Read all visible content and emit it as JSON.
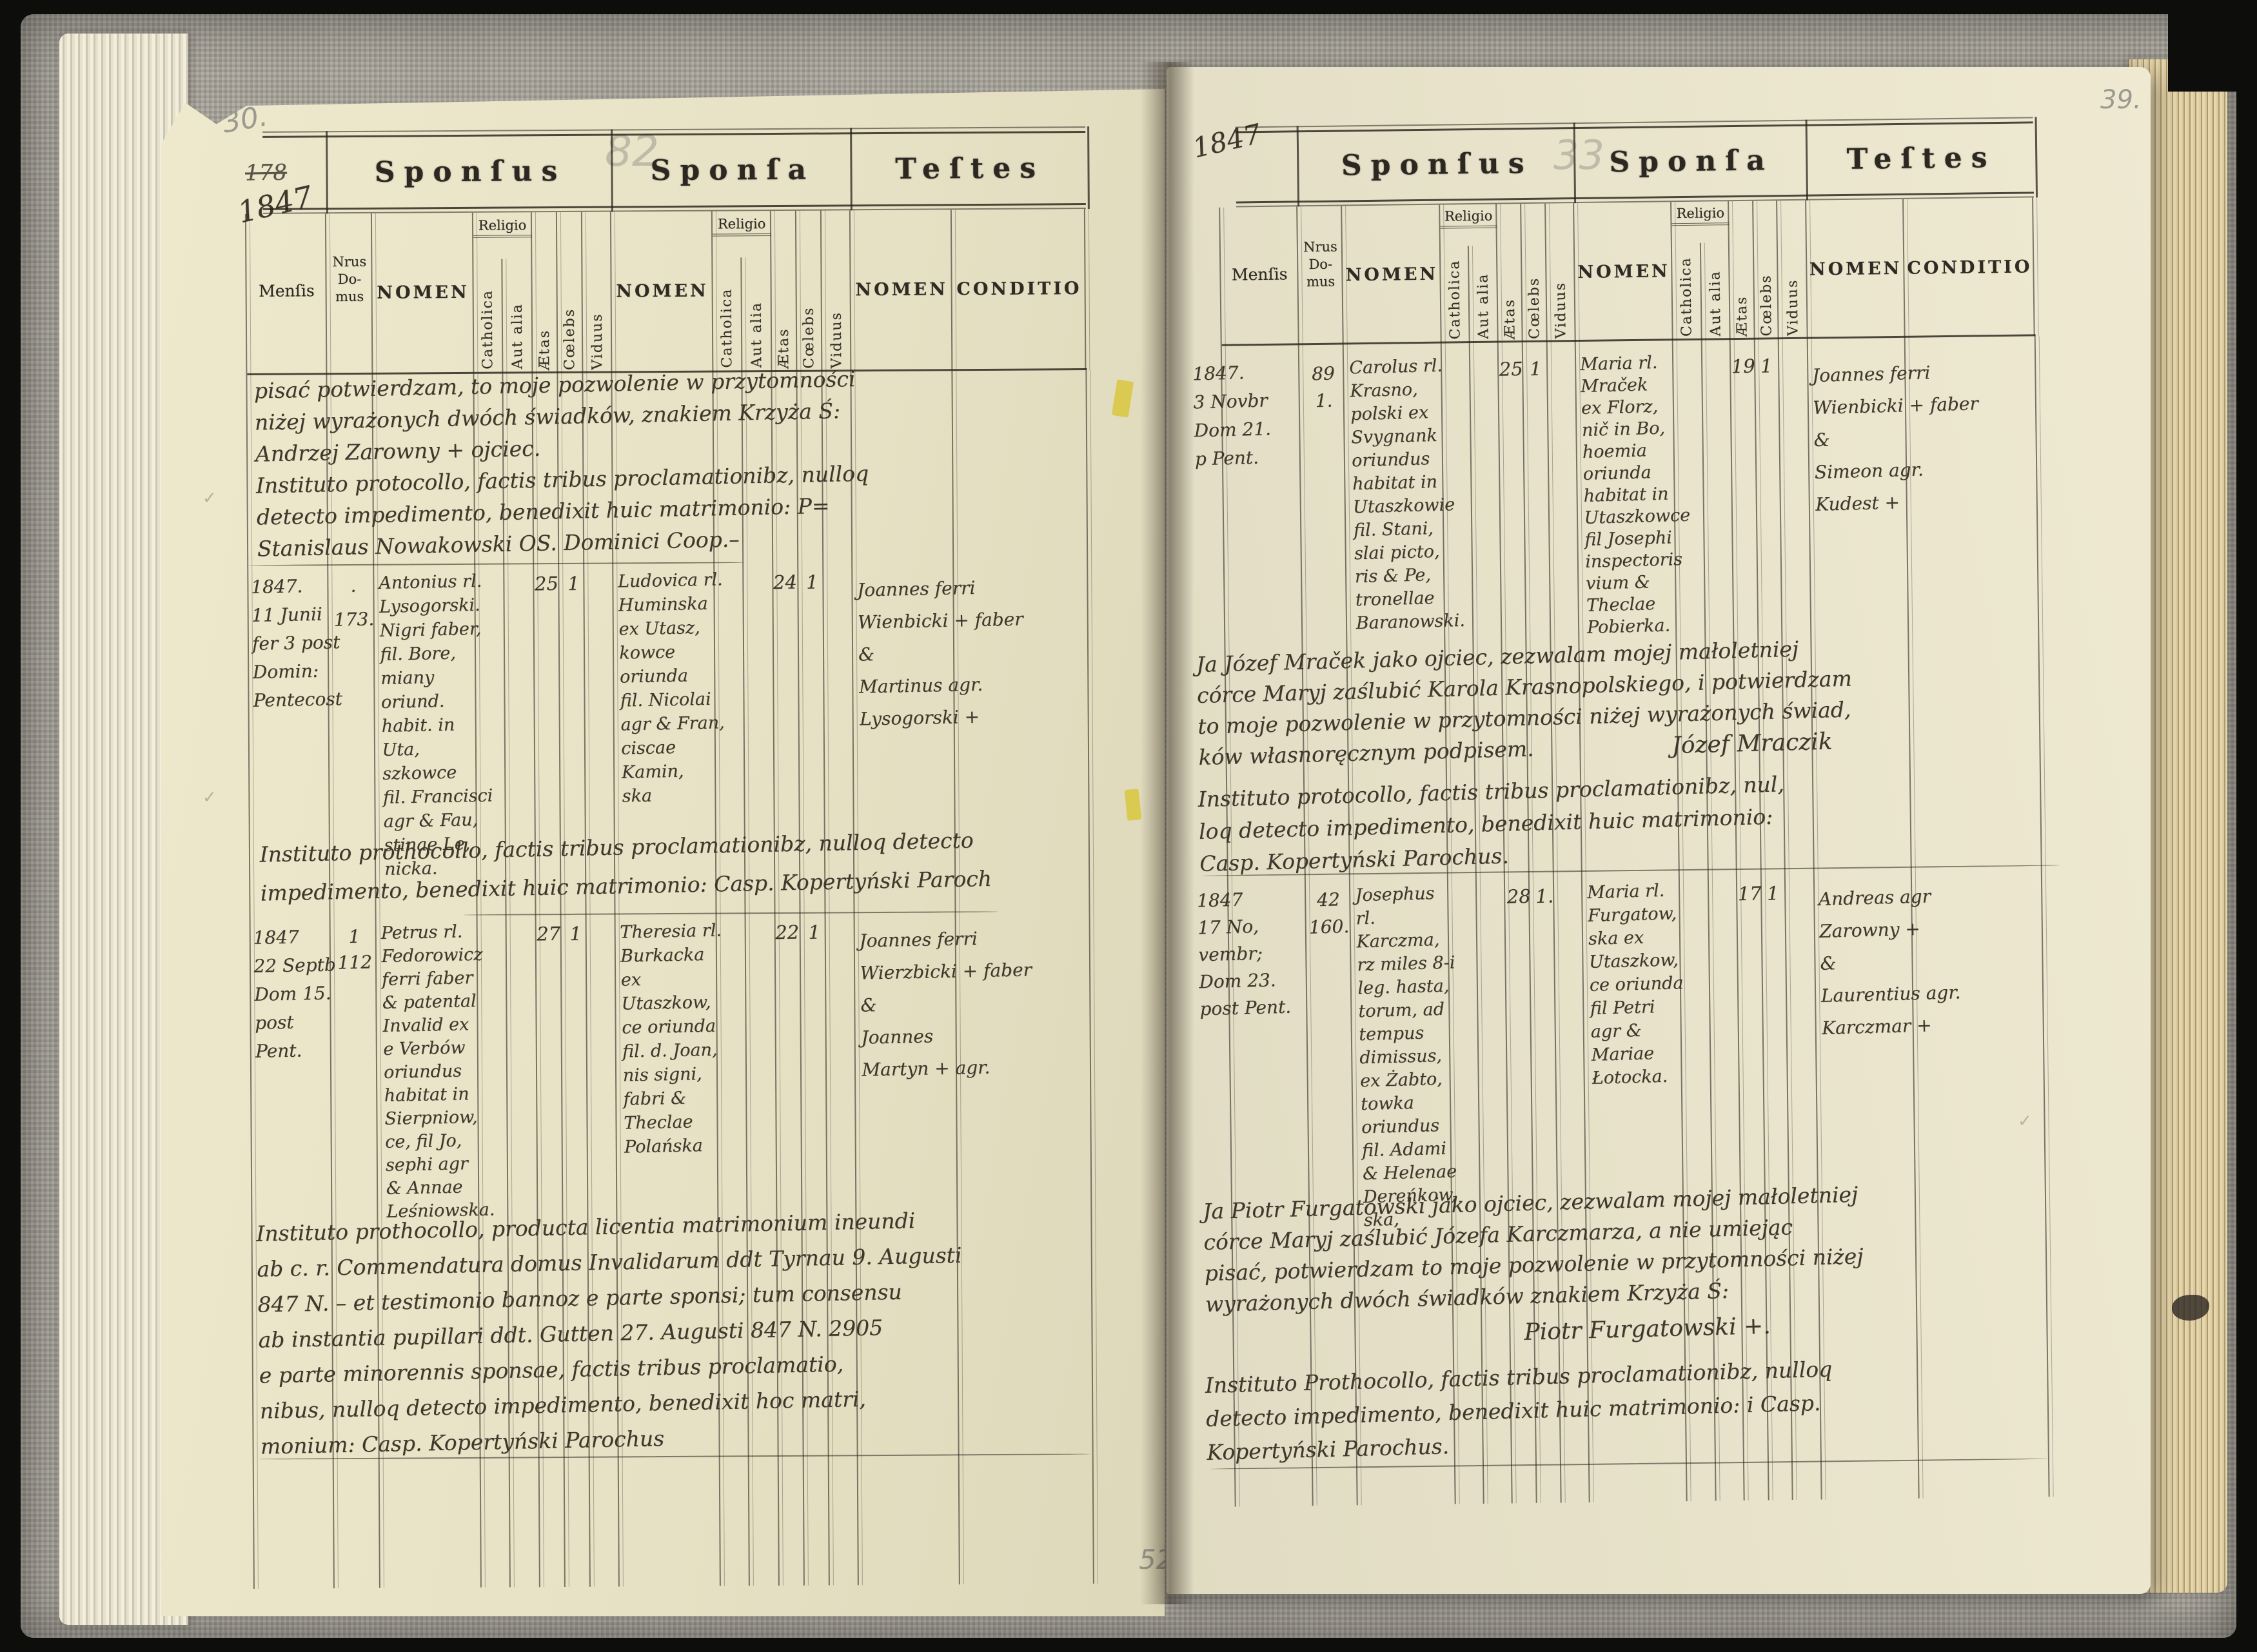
{
  "book": {
    "document_type": "parish marriage register spread, 1847",
    "colors": {
      "paper": "#e9e3c8",
      "ink": "#3f372b",
      "pencil": "#8d8b83",
      "cover": "#a8a49a"
    }
  },
  "column_headers": {
    "group": [
      "Sponſus",
      "Sponſa",
      "Teſtes"
    ],
    "mensis": "Menſis",
    "nrus": [
      "Nrus",
      "Do-",
      "mus"
    ],
    "nomen": "NOMEN",
    "religio": "Religio",
    "catholica": "Catholica",
    "aut_alia": "Aut alia",
    "aetas": "Ætas",
    "coelebs": "Cœlebs",
    "viduus": "Viduus",
    "conditio": "CONDITIO"
  },
  "annotations": {
    "left_folio_pencil": "30.",
    "left_crossed_number": "178",
    "left_year_script": "1847",
    "left_sheet_pencil": "82",
    "right_year_script": "1847",
    "right_sheet_pencil": "33",
    "right_corner_pencil": "39.",
    "bottom_pencil": "52",
    "check_mark": "✓"
  },
  "left_page": {
    "top_note": [
      "pisać potwierdzam, to moje pozwolenie w przytomności",
      "niżej wyrażonych dwóch świadków, znakiem Krzyża Ś:",
      "Andrzej Zarowny + ojciec.",
      "Instituto protocollo, factis tribus proclamationibz, nulloq",
      "detecto impedimento, benedixit huic matrimonio: P=",
      "Stanislaus Nowakowski OS. Dominici Coop.–"
    ],
    "entries": [
      {
        "date": [
          "1847.",
          "11 Junii",
          "fer 3 post",
          "Domin:",
          "Pentecost"
        ],
        "house": [
          "·",
          "173."
        ],
        "sponsus": [
          "Antonius rl.",
          "Lysogorski.",
          "Nigri faber,",
          "fil. Bore,",
          "miany oriund.",
          "habit. in Uta,",
          "szkowce",
          "fil. Francisci",
          "agr & Fau,",
          "stinae Le,",
          "nicka."
        ],
        "sponsus_aetas": "25",
        "sponsus_coelebs": "1",
        "sponsa": [
          "Ludovica rl.",
          "Huminska",
          "ex Utasz,",
          "kowce",
          "oriunda",
          "fil. Nicolai",
          "agr & Fran,",
          "ciscae",
          "Kamin,",
          "ska"
        ],
        "sponsa_aetas": "24",
        "sponsa_coelebs": "1",
        "testes": [
          "Joannes ferri",
          "Wienbicki + faber",
          "&",
          "Martinus  agr.",
          "Lysogorski +"
        ]
      },
      {
        "date": [
          "1847",
          "22 Septb",
          "Dom 15.",
          "post Pent."
        ],
        "house": [
          "1",
          "112"
        ],
        "sponsus": [
          "Petrus rl.",
          "Fedorowicz",
          "ferri faber",
          "& patental",
          "Invalid ex",
          "e Verbów",
          "oriundus",
          "habitat in",
          "Sierpniow,",
          "ce, fil Jo,",
          "sephi agr",
          "& Annae",
          "Leśniowska."
        ],
        "sponsus_aetas": "27",
        "sponsus_coelebs": "1",
        "sponsa": [
          "Theresia rl.",
          "Burkacka",
          "ex Utaszkow,",
          "ce oriunda",
          "fil. d. Joan,",
          "nis signi,",
          "fabri &",
          "Theclae",
          "Polańska"
        ],
        "sponsa_aetas": "22",
        "sponsa_coelebs": "1",
        "testes": [
          "Joannes ferri",
          "Wierzbicki + faber",
          "&",
          "Joannes",
          "Martyn + agr."
        ]
      }
    ],
    "note_after_entry1": [
      "Instituto prothocollo, factis tribus proclamationibz, nulloq detecto",
      "impedimento, benedixit huic matrimonio: Casp. Kopertyński Paroch"
    ],
    "bottom_note": [
      "Instituto prothocollo, producta licentia matrimonium ineundi",
      "ab c. r. Commendatura domus Invalidarum ddt Tyrnau 9. Augusti",
      "847 N. – et testimonio bannoz e parte sponsi; tum consensu",
      "ab instantia pupillari ddt. Gutten 27. Augusti 847 N. 2905",
      "e parte minorennis sponsae, factis tribus proclamatio,",
      "nibus, nulloq detecto impedimento, benedixit hoc matri,",
      "monium:      Casp. Kopertyński Parochus"
    ]
  },
  "right_page": {
    "entries": [
      {
        "date": [
          "1847.",
          "3 Novbr",
          "Dom 21.",
          "p Pent."
        ],
        "house": [
          "89",
          "1."
        ],
        "sponsus": [
          "Carolus rl.",
          "Krasno,",
          "polski ex",
          "Svygnank",
          "oriundus",
          "habitat in",
          "Utaszkowie",
          "fil. Stani,",
          "slai picto,",
          "ris & Pe,",
          "tronellae",
          "Baranowski."
        ],
        "sponsus_aetas": "25",
        "sponsus_coelebs": "1",
        "sponsa": [
          "Maria rl.",
          "Mraček",
          "ex Florz,",
          "nič in Bo,",
          "hoemia",
          "oriunda",
          "habitat in",
          "Utaszkowce",
          "fil Josephi",
          "inspectoris",
          "vium &",
          "Theclae",
          "Pobierka."
        ],
        "sponsa_aetas": "19",
        "sponsa_coelebs": "1",
        "testes": [
          "Joannes ferri",
          "Wienbicki + faber",
          "&",
          "Simeon agr.",
          "Kudest +"
        ]
      },
      {
        "date": [
          "1847",
          "17 No,",
          "vembr;",
          "Dom 23.",
          "post Pent."
        ],
        "house": [
          "42",
          "160."
        ],
        "sponsus": [
          "Josephus rl.",
          "Karczma,",
          "rz miles 8-i",
          "leg. hasta,",
          "torum, ad",
          "tempus",
          "dimissus,",
          "ex Żabto,",
          "towka",
          "oriundus",
          "fil. Adami",
          "& Helenae",
          "Dereńkow,",
          "ska,"
        ],
        "sponsus_aetas": "28",
        "sponsus_coelebs": "1.",
        "sponsa": [
          "Maria rl.",
          "Furgatow,",
          "ska ex",
          "Utaszkow,",
          "ce oriunda",
          "fil Petri",
          "agr &",
          "Mariae",
          "Łotocka."
        ],
        "sponsa_aetas": "17",
        "sponsa_coelebs": "1",
        "testes": [
          "Andreas agr",
          "Zarowny +",
          "&",
          "Laurentius agr.",
          "Karczmar +"
        ]
      }
    ],
    "note1_polish": [
      "Ja Józef Mraček jako ojciec, zezwalam mojej małoletniej",
      "córce Maryj zaślubić Karola Krasnopolskiego, i potwierdzam",
      "to moje pozwolenie w przytomności niżej wyrażonych świad,",
      "ków własnoręcznym podpisem."
    ],
    "note1_signature": "Józef Mraczik",
    "note1_latin": [
      "Instituto protocollo, factis tribus proclamationibz, nul,",
      "loq detecto impedimento, benedixit huic matrimonio:",
      "Casp. Kopertyński Parochus."
    ],
    "note2_polish": [
      "Ja Piotr Furgatowski jako ojciec, zezwalam mojej małoletniej",
      "córce Maryj zaślubić Józefa Karczmarza, a nie umiejąc",
      "pisać, potwierdzam to moje pozwolenie w przytomności niżej",
      "wyrażonych dwóch świadków znakiem Krzyża Ś:"
    ],
    "note2_signature": "Piotr Furgatowski +.",
    "note2_latin": [
      "Instituto Prothocollo, factis tribus proclamationibz, nulloq",
      "detecto impedimento, benedixit huic matrimonio: i Casp.",
      "Kopertyński Parochus."
    ]
  }
}
